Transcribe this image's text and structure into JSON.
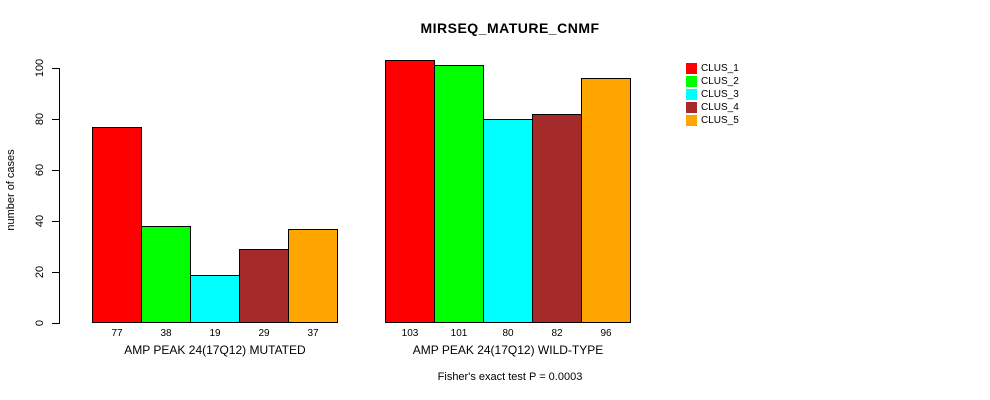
{
  "title": "MIRSEQ_MATURE_CNMF",
  "footer": "Fisher's exact test P = 0.0003",
  "chart_data": {
    "type": "bar",
    "title": "MIRSEQ_MATURE_CNMF",
    "ylabel": "number of cases",
    "xlabel": "",
    "ylim": [
      0,
      100
    ],
    "yticks": [
      0,
      20,
      40,
      60,
      80,
      100
    ],
    "grid": false,
    "legend_position": "right",
    "series_names": [
      "CLUS_1",
      "CLUS_2",
      "CLUS_3",
      "CLUS_4",
      "CLUS_5"
    ],
    "legend": {
      "entries": [
        {
          "label": "CLUS_1",
          "color": "#FF0000"
        },
        {
          "label": "CLUS_2",
          "color": "#00FF00"
        },
        {
          "label": "CLUS_3",
          "color": "#00FFFF"
        },
        {
          "label": "CLUS_4",
          "color": "#A52A2A"
        },
        {
          "label": "CLUS_5",
          "color": "#FFA500"
        }
      ]
    },
    "groups": [
      {
        "label": "AMP PEAK 24(17Q12) MUTATED",
        "values": [
          77,
          38,
          19,
          29,
          37
        ]
      },
      {
        "label": "AMP PEAK 24(17Q12) WILD-TYPE",
        "values": [
          103,
          101,
          80,
          82,
          96
        ]
      }
    ],
    "annotation": "Fisher's exact test P = 0.0003"
  }
}
